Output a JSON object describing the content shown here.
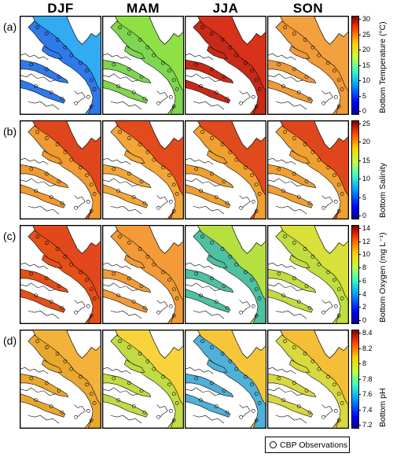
{
  "seasons": [
    "DJF",
    "MAM",
    "JJA",
    "SON"
  ],
  "rows": [
    {
      "label": "(a)",
      "colorbar_label": "Bottom Temperature (°C)",
      "ticks": [
        "30",
        "25",
        "20",
        "15",
        "10",
        "5",
        "0"
      ],
      "range": [
        0,
        30
      ],
      "scheme": "jet",
      "ocean_colors": [
        "#33aaf4",
        "#8fe044",
        "#d8321a",
        "#f3a13f"
      ],
      "bay_colors": [
        "#2f7ae8",
        "#7fd650",
        "#c82a18",
        "#f09a38"
      ]
    },
    {
      "label": "(b)",
      "colorbar_label": "Bottom Salinity",
      "ticks": [
        "25",
        "20",
        "15",
        "10",
        "5",
        "0"
      ],
      "range": [
        0,
        25
      ],
      "scheme": "jet",
      "ocean_colors": [
        "#e0461c",
        "#e34a1c",
        "#e04a1c",
        "#e0461c"
      ],
      "bay_colors": [
        "#f09a30",
        "#f3a638",
        "#f0a030",
        "#f0a030"
      ]
    },
    {
      "label": "(c)",
      "colorbar_label": "Bottom Oxygen (mg L⁻¹)",
      "ticks": [
        "14",
        "12",
        "10",
        "8",
        "6",
        "4",
        "2",
        "0"
      ],
      "range": [
        0,
        14
      ],
      "scheme": "jet",
      "ocean_colors": [
        "#e2481c",
        "#f49a38",
        "#b5e040",
        "#d8e03a"
      ],
      "bay_colors": [
        "#e35018",
        "#f09a38",
        "#4fc0a0",
        "#c0de40"
      ]
    },
    {
      "label": "(d)",
      "colorbar_label": "Bottom pH",
      "ticks": [
        "8.4",
        "8.2",
        "8",
        "7.8",
        "7.6",
        "7.4",
        "7.2"
      ],
      "range": [
        7.2,
        8.5
      ],
      "scheme": "jet",
      "ocean_colors": [
        "#f3b23a",
        "#f9d33c",
        "#f6c63a",
        "#f4be38"
      ],
      "bay_colors": [
        "#e8a830",
        "#c0dc42",
        "#4fb0d8",
        "#d8d840"
      ]
    }
  ],
  "legend_label": "CBP Observations",
  "icons": {
    "legend_marker": "circle-marker-icon"
  }
}
